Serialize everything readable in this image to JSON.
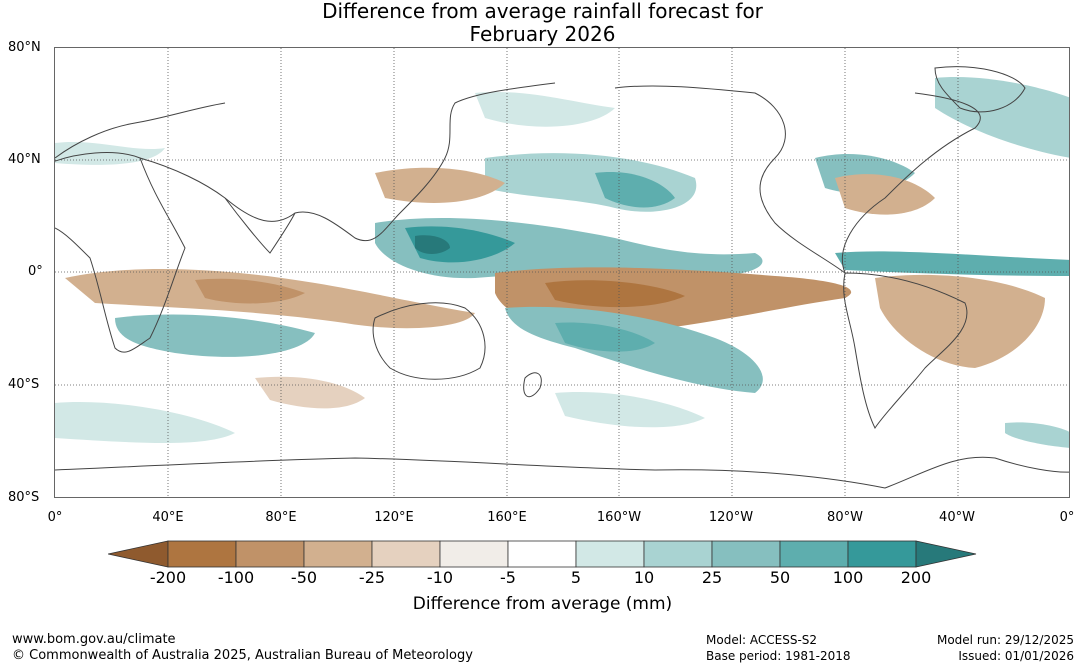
{
  "title": {
    "line1": "Difference from average rainfall forecast for",
    "line2": "February 2026"
  },
  "map": {
    "lat_labels": [
      "80°N",
      "40°N",
      "0°",
      "40°S",
      "80°S"
    ],
    "lon_labels": [
      "0°",
      "40°E",
      "80°E",
      "120°E",
      "160°E",
      "160°W",
      "120°W",
      "80°W",
      "40°W",
      "0°"
    ]
  },
  "colorbar": {
    "ticks": [
      "-200",
      "-100",
      "-50",
      "-25",
      "-10",
      "-5",
      "5",
      "10",
      "25",
      "50",
      "100",
      "200"
    ],
    "colors": [
      "#8f5a2e",
      "#ae7540",
      "#c09268",
      "#d2b08f",
      "#e5d1bf",
      "#f1ede8",
      "#ffffff",
      "#d2e8e6",
      "#a9d3d2",
      "#86bfbf",
      "#5eaeae",
      "#35999a",
      "#27797a"
    ],
    "label": "Difference from average (mm)"
  },
  "footer": {
    "website": "www.bom.gov.au/climate",
    "copyright": "© Commonwealth of Australia 2025, Australian Bureau of Meteorology",
    "model": "Model: ACCESS-S2",
    "base_period": "Base period: 1981-2018",
    "model_run": "Model run: 29/12/2025",
    "issued": "Issued: 01/01/2026"
  }
}
